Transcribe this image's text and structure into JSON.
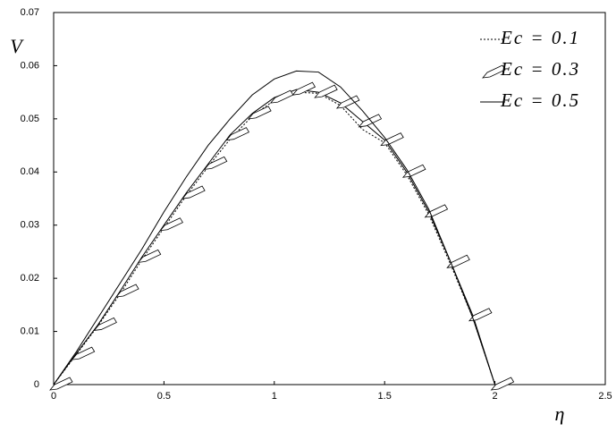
{
  "chart_data": {
    "type": "line",
    "x_label": "η",
    "y_label": "V",
    "x": [
      0,
      0.1,
      0.2,
      0.3,
      0.4,
      0.5,
      0.6,
      0.7,
      0.8,
      0.9,
      1.0,
      1.1,
      1.2,
      1.3,
      1.4,
      1.5,
      1.6,
      1.7,
      1.8,
      1.9,
      2.0
    ],
    "series": [
      {
        "name": "Ec = 0.1",
        "color": "#000000",
        "style": "dotted",
        "values": [
          0,
          0.0055,
          0.011,
          0.017,
          0.0235,
          0.0295,
          0.0355,
          0.041,
          0.0462,
          0.0505,
          0.0535,
          0.055,
          0.0548,
          0.0525,
          0.048,
          0.0455,
          0.0395,
          0.032,
          0.0225,
          0.0125,
          0
        ]
      },
      {
        "name": "Ec = 0.3",
        "color": "#000000",
        "style": "pencil",
        "values": [
          0,
          0.0057,
          0.0112,
          0.0175,
          0.024,
          0.03,
          0.036,
          0.0415,
          0.047,
          0.051,
          0.054,
          0.0555,
          0.055,
          0.053,
          0.0495,
          0.046,
          0.04,
          0.0325,
          0.023,
          0.013,
          0
        ]
      },
      {
        "name": "Ec = 0.5",
        "color": "#000000",
        "style": "solid",
        "values": [
          0,
          0.006,
          0.0125,
          0.019,
          0.0255,
          0.0325,
          0.039,
          0.045,
          0.05,
          0.0545,
          0.0575,
          0.059,
          0.0588,
          0.056,
          0.0515,
          0.0465,
          0.0405,
          0.033,
          0.023,
          0.0125,
          0
        ]
      }
    ],
    "xlim": [
      0,
      2.5
    ],
    "xticks": [
      0,
      0.5,
      1,
      1.5,
      2,
      2.5
    ],
    "ylim": [
      0,
      0.07
    ],
    "yticks": [
      0,
      0.01,
      0.02,
      0.03,
      0.04,
      0.05,
      0.06,
      0.07
    ],
    "legend": "top-right"
  }
}
